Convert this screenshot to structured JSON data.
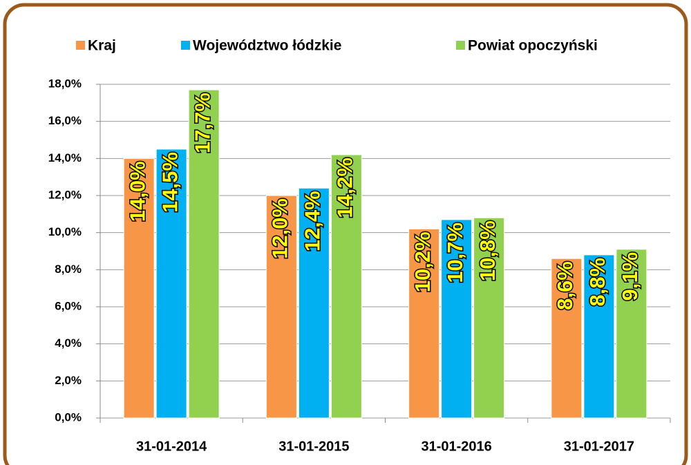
{
  "chart_data": {
    "type": "bar",
    "categories": [
      "31-01-2014",
      "31-01-2015",
      "31-01-2016",
      "31-01-2017"
    ],
    "series": [
      {
        "name": "Kraj",
        "color": "#f79646",
        "values": [
          14.0,
          12.0,
          10.2,
          8.6
        ],
        "value_labels": [
          "14,0%",
          "12,0%",
          "10,2%",
          "8,6%"
        ]
      },
      {
        "name": "Województwo łódzkie",
        "color": "#00b0f0",
        "values": [
          14.5,
          12.4,
          10.7,
          8.8
        ],
        "value_labels": [
          "14,5%",
          "12,4%",
          "10,7%",
          "8,8%"
        ]
      },
      {
        "name": "Powiat opoczyński",
        "color": "#92d050",
        "values": [
          17.7,
          14.2,
          10.8,
          9.1
        ],
        "value_labels": [
          "17,7%",
          "14,2%",
          "10,8%",
          "9,1%"
        ]
      }
    ],
    "ylim": [
      0,
      18
    ],
    "yticks": [
      {
        "value": 0,
        "label": "0,0%"
      },
      {
        "value": 2,
        "label": "2,0%"
      },
      {
        "value": 4,
        "label": "4,0%"
      },
      {
        "value": 6,
        "label": "6,0%"
      },
      {
        "value": 8,
        "label": "8,0%"
      },
      {
        "value": 10,
        "label": "10,0%"
      },
      {
        "value": 12,
        "label": "12,0%"
      },
      {
        "value": 14,
        "label": "14,0%"
      },
      {
        "value": 16,
        "label": "16,0%"
      },
      {
        "value": 18,
        "label": "18,0%"
      }
    ],
    "grid": true,
    "legend": "top"
  }
}
